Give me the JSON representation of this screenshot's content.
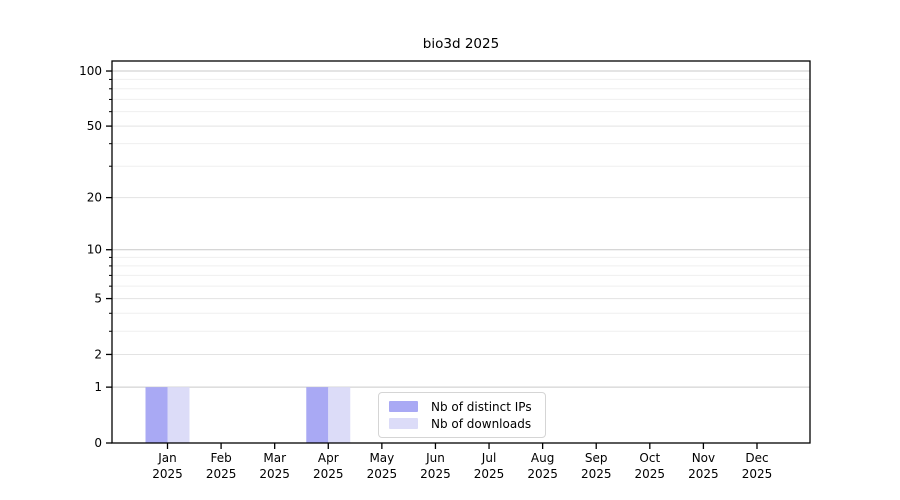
{
  "title": "bio3d 2025",
  "colors": {
    "series_distinct_ips": "#a9a9f4",
    "series_downloads": "#dcdcf8",
    "grid_major_power10": "#c9c9c9",
    "grid_major": "#e3e3e3",
    "grid_minor": "#efefef",
    "axis": "#000000",
    "legend_border": "#d5d5d5",
    "background": "#ffffff"
  },
  "chart_data": {
    "type": "bar",
    "title": "bio3d 2025",
    "categories": [
      "Jan",
      "Feb",
      "Mar",
      "Apr",
      "May",
      "Jun",
      "Jul",
      "Aug",
      "Sep",
      "Oct",
      "Nov",
      "Dec"
    ],
    "year": "2025",
    "series": [
      {
        "name": "Nb of distinct IPs",
        "color": "#a9a9f4",
        "values": [
          1,
          0,
          0,
          1,
          0,
          0,
          0,
          0,
          0,
          0,
          0,
          0
        ]
      },
      {
        "name": "Nb of downloads",
        "color": "#dcdcf8",
        "values": [
          1,
          0,
          0,
          1,
          0,
          0,
          0,
          0,
          0,
          0,
          0,
          0
        ]
      }
    ],
    "xlabel": "",
    "ylabel": "",
    "yscale": "log1p",
    "ylim": [
      0,
      115
    ],
    "y_major_ticks": [
      0,
      1,
      2,
      5,
      10,
      20,
      50,
      100
    ],
    "y_minor_ticks": [
      3,
      4,
      6,
      7,
      8,
      9,
      30,
      40,
      60,
      70,
      80,
      90
    ],
    "grid": true,
    "legend_position": "lower-center-left-inside"
  }
}
